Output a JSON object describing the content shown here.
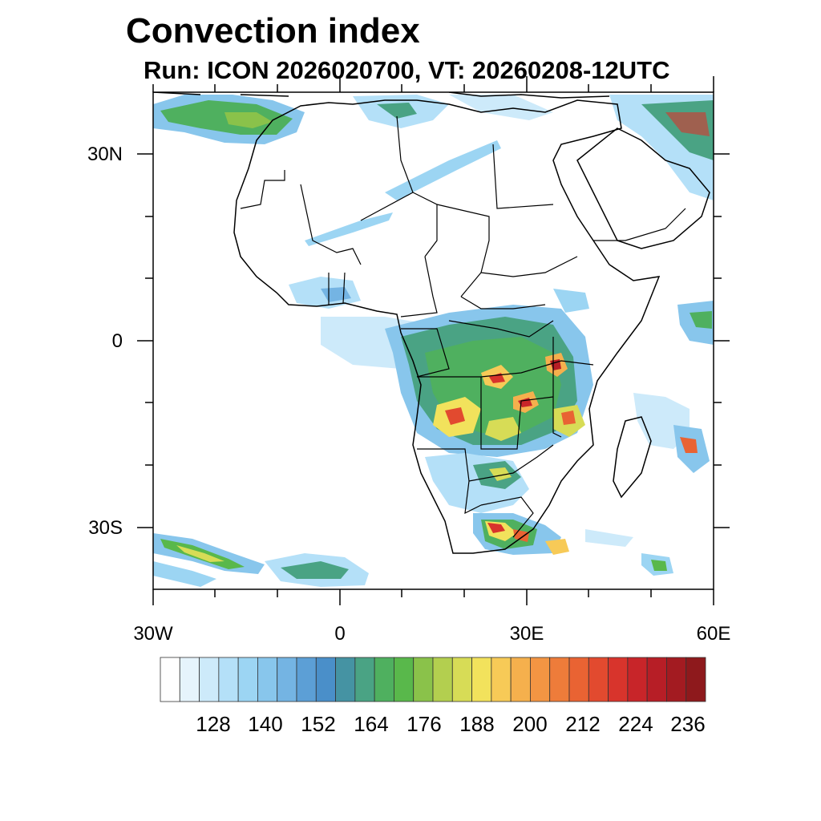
{
  "title": "Convection index",
  "subtitle": "Run: ICON 2026020700,  VT: 20260208-12UTC",
  "map": {
    "region": "Africa",
    "lon_range": [
      -30,
      60
    ],
    "lat_range": [
      -40,
      40
    ],
    "x_ticks": [
      {
        "value": -30,
        "label": "30W"
      },
      {
        "value": 0,
        "label": "0"
      },
      {
        "value": 30,
        "label": "30E"
      },
      {
        "value": 60,
        "label": "60E"
      }
    ],
    "y_ticks": [
      {
        "value": 30,
        "label": "30N"
      },
      {
        "value": 0,
        "label": "0"
      },
      {
        "value": -30,
        "label": "30S"
      }
    ]
  },
  "colorbar": {
    "colors": [
      "#ffffff",
      "#e6f4fc",
      "#cdeafa",
      "#b4e0f8",
      "#9cd5f3",
      "#88c6ec",
      "#74b4e3",
      "#5c9fd6",
      "#4a8fc9",
      "#4593a3",
      "#4aa384",
      "#4fb05f",
      "#59b84b",
      "#8ac24a",
      "#b3cf4f",
      "#d7dc56",
      "#f2e25c",
      "#f7ca57",
      "#f5b04d",
      "#f39543",
      "#ee7c3a",
      "#e96333",
      "#e24a2f",
      "#d8342c",
      "#c82529",
      "#b71e26",
      "#a31b21",
      "#8e191c"
    ],
    "labels": [
      "128",
      "140",
      "152",
      "164",
      "176",
      "188",
      "200",
      "212",
      "224",
      "236"
    ]
  },
  "chart_data": {
    "type": "heatmap",
    "title": "Convection index",
    "subtitle": "Run: ICON 2026020700,  VT: 20260208-12UTC",
    "legend_levels": [
      128,
      140,
      152,
      164,
      176,
      188,
      200,
      212,
      224,
      236
    ],
    "x_axis_range": [
      -30,
      60
    ],
    "y_axis_range": [
      -40,
      40
    ]
  }
}
